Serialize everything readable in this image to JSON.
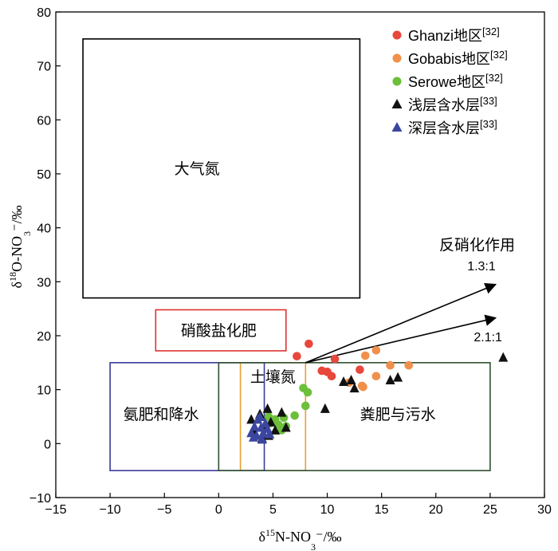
{
  "chart_data": {
    "type": "scatter",
    "x_axis": {
      "label_main": "δ",
      "label_sup": "15",
      "label_rest": "N-NO",
      "label_sub": "3",
      "label_tail": "⁻/‰",
      "range": [
        -15,
        30
      ],
      "ticks": [
        "−15",
        "−10",
        "−5",
        "0",
        "5",
        "10",
        "15",
        "20",
        "25",
        "30"
      ],
      "tick_values": [
        -15,
        -10,
        -5,
        0,
        5,
        10,
        15,
        20,
        25,
        30
      ]
    },
    "y_axis": {
      "label_main": "δ",
      "label_sup": "18",
      "label_rest": "O-NO",
      "label_sub": "3",
      "label_tail": "⁻/‰",
      "range": [
        -10,
        80
      ],
      "ticks": [
        "−10",
        "0",
        "10",
        "20",
        "30",
        "40",
        "50",
        "60",
        "70",
        "80"
      ],
      "tick_values": [
        -10,
        0,
        10,
        20,
        30,
        40,
        50,
        60,
        70,
        80
      ]
    },
    "regions": [
      {
        "label": "大气氮",
        "x0": -12.5,
        "x1": 13,
        "y0": 27,
        "y1": 75,
        "color": "#000000",
        "label_x": -2,
        "label_y": 51
      },
      {
        "label": "硝酸盐化肥",
        "x0": -5.8,
        "x1": 6.2,
        "y0": 17.2,
        "y1": 24.8,
        "color": "#e03030",
        "label_x": 0,
        "label_y": 21
      },
      {
        "label": "土壤氮",
        "x0": 2,
        "x1": 8,
        "y0": -5,
        "y1": 15,
        "color": "#e8a030",
        "label_x": 5,
        "label_y": 12.5
      },
      {
        "label": "氨肥和降水",
        "x0": -10,
        "x1": 4.2,
        "y0": -5,
        "y1": 15,
        "color": "#3a3a9a",
        "label_x": -5.3,
        "label_y": 5.5
      },
      {
        "label": "粪肥与污水",
        "x0": 0,
        "x1": 25,
        "y0": -5,
        "y1": 15,
        "color": "#2f4f2f",
        "label_x": 16.5,
        "label_y": 5.5
      }
    ],
    "annotation": {
      "title": "反硝化作用",
      "arrows": [
        {
          "label": "1.3:1",
          "from": [
            8,
            15
          ],
          "to": [
            25.5,
            29.5
          ]
        },
        {
          "label": "2.1:1",
          "from": [
            8,
            15
          ],
          "to": [
            25.5,
            23.3
          ]
        }
      ]
    },
    "legend": {
      "placement": "top-right",
      "entries": [
        {
          "name": "Ghanzi地区",
          "ref": "[32]",
          "marker": "circle",
          "color": "#e8473b"
        },
        {
          "name": "Gobabis地区",
          "ref": "[32]",
          "marker": "circle",
          "color": "#f0904a"
        },
        {
          "name": "Serowe地区",
          "ref": "[32]",
          "marker": "circle",
          "color": "#6cbf3a"
        },
        {
          "name": "浅层含水层",
          "ref": "[33]",
          "marker": "triangle",
          "color": "#111111"
        },
        {
          "name": "深层含水层",
          "ref": "[33]",
          "marker": "triangle",
          "color": "#3b46a0"
        }
      ]
    },
    "series": [
      {
        "name": "Ghanzi地区",
        "marker": "circle",
        "color": "#e8473b",
        "x": [
          7.2,
          8.3,
          9.5,
          10.0,
          10.4,
          10.7,
          13.0
        ],
        "y": [
          16.2,
          18.5,
          13.5,
          13.3,
          12.5,
          15.7,
          13.7
        ]
      },
      {
        "name": "Gobabis地区",
        "marker": "circle",
        "color": "#f0904a",
        "x": [
          12.0,
          13.2,
          13.5,
          14.5,
          14.5,
          15.8,
          17.5,
          13.3
        ],
        "y": [
          11.3,
          10.7,
          16.3,
          17.3,
          12.5,
          14.5,
          14.5,
          10.5
        ]
      },
      {
        "name": "Serowe地区",
        "marker": "circle",
        "color": "#6cbf3a",
        "x": [
          4.6,
          5.2,
          5.5,
          6.0,
          6.2,
          7.0,
          7.8,
          8.2,
          8.0,
          5.8,
          4.8
        ],
        "y": [
          5.0,
          4.5,
          3.5,
          4.8,
          3.2,
          5.2,
          10.3,
          9.5,
          7.0,
          2.5,
          3.8
        ]
      },
      {
        "name": "浅层含水层",
        "marker": "triangle",
        "color": "#111111",
        "x": [
          3.0,
          3.2,
          3.8,
          4.2,
          4.5,
          4.8,
          5.2,
          5.8,
          6.2,
          9.8,
          11.5,
          12.2,
          12.5,
          15.8,
          16.5,
          26.2,
          4.0,
          4.6
        ],
        "y": [
          4.5,
          2.5,
          5.5,
          3.0,
          6.5,
          4.0,
          2.5,
          5.8,
          3.0,
          6.5,
          11.5,
          11.8,
          10.3,
          11.8,
          12.3,
          16.0,
          1.0,
          1.5
        ]
      },
      {
        "name": "深层含水层",
        "marker": "triangle",
        "color": "#3b46a0",
        "x": [
          3.0,
          3.3,
          3.6,
          3.9,
          4.1,
          4.3,
          3.5,
          3.8,
          4.5,
          4.7,
          4.0,
          3.2
        ],
        "y": [
          2.0,
          3.2,
          4.5,
          3.0,
          2.0,
          3.8,
          1.5,
          5.0,
          2.8,
          1.8,
          0.8,
          1.2
        ]
      }
    ]
  }
}
